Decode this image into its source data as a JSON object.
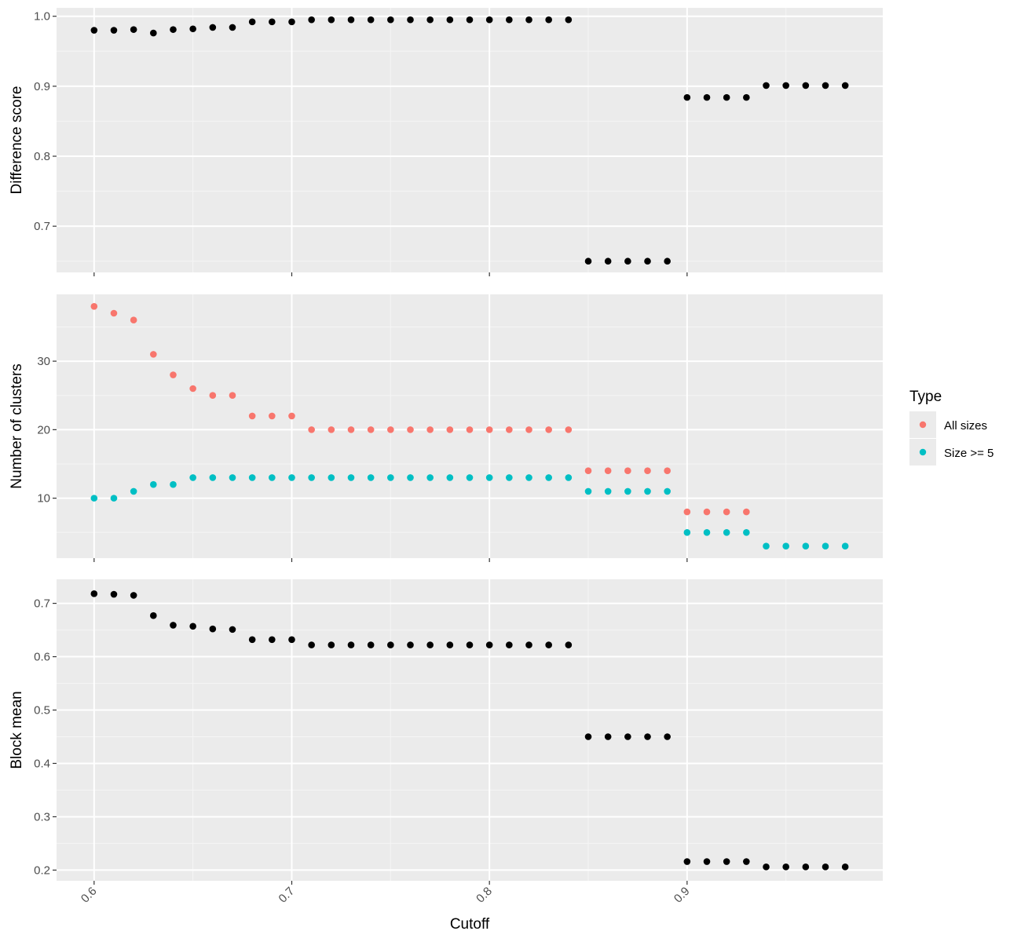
{
  "chart_data": {
    "type": "scatter",
    "x_axis": {
      "title": "Cutoff",
      "range": [
        0.581,
        0.999
      ],
      "ticks": [
        0.6,
        0.7,
        0.8,
        0.9
      ],
      "tick_labels": [
        "0.6",
        "0.7",
        "0.8",
        "0.9"
      ]
    },
    "x": [
      0.6,
      0.61,
      0.62,
      0.63,
      0.64,
      0.65,
      0.66,
      0.67,
      0.68,
      0.69,
      0.7,
      0.71,
      0.72,
      0.73,
      0.74,
      0.75,
      0.76,
      0.77,
      0.78,
      0.79,
      0.8,
      0.81,
      0.82,
      0.83,
      0.84,
      0.85,
      0.86,
      0.87,
      0.88,
      0.89,
      0.9,
      0.91,
      0.92,
      0.93,
      0.94,
      0.95,
      0.96,
      0.97,
      0.98
    ],
    "grid": true,
    "legend": {
      "title": "Type",
      "position": "right",
      "entries": [
        {
          "label": "All sizes",
          "color": "#F8766D"
        },
        {
          "label": "Size >= 5",
          "color": "#00BFC4"
        }
      ]
    },
    "panels": [
      {
        "ylabel": "Difference score",
        "ylim": [
          0.634,
          1.012
        ],
        "yticks": [
          0.7,
          0.8,
          0.9,
          1.0
        ],
        "ytick_labels": [
          "0.7",
          "0.8",
          "0.9",
          "1.0"
        ],
        "series": [
          {
            "color": "#000000",
            "values": [
              0.98,
              0.98,
              0.981,
              0.976,
              0.981,
              0.982,
              0.984,
              0.984,
              0.992,
              0.992,
              0.992,
              0.995,
              0.995,
              0.995,
              0.995,
              0.995,
              0.995,
              0.995,
              0.995,
              0.995,
              0.995,
              0.995,
              0.995,
              0.995,
              0.995,
              0.65,
              0.65,
              0.65,
              0.65,
              0.65,
              0.884,
              0.884,
              0.884,
              0.884,
              0.901,
              0.901,
              0.901,
              0.901,
              0.901
            ]
          }
        ]
      },
      {
        "ylabel": "Number of clusters",
        "ylim": [
          1.25,
          39.75
        ],
        "yticks": [
          10,
          20,
          30
        ],
        "ytick_labels": [
          "10",
          "20",
          "30"
        ],
        "series": [
          {
            "name": "All sizes",
            "color": "#F8766D",
            "values": [
              38,
              37,
              36,
              31,
              28,
              26,
              25,
              25,
              22,
              22,
              22,
              20,
              20,
              20,
              20,
              20,
              20,
              20,
              20,
              20,
              20,
              20,
              20,
              20,
              20,
              14,
              14,
              14,
              14,
              14,
              8,
              8,
              8,
              8,
              null,
              null,
              null,
              null,
              null
            ]
          },
          {
            "name": "Size >= 5",
            "color": "#00BFC4",
            "values": [
              10,
              10,
              11,
              12,
              12,
              13,
              13,
              13,
              13,
              13,
              13,
              13,
              13,
              13,
              13,
              13,
              13,
              13,
              13,
              13,
              13,
              13,
              13,
              13,
              13,
              11,
              11,
              11,
              11,
              11,
              5,
              5,
              5,
              5,
              3,
              3,
              3,
              3,
              3
            ]
          }
        ]
      },
      {
        "ylabel": "Block mean",
        "ylim": [
          0.18,
          0.745
        ],
        "yticks": [
          0.2,
          0.3,
          0.4,
          0.5,
          0.6,
          0.7
        ],
        "ytick_labels": [
          "0.2",
          "0.3",
          "0.4",
          "0.5",
          "0.6",
          "0.7"
        ],
        "series": [
          {
            "color": "#000000",
            "values": [
              0.718,
              0.717,
              0.715,
              0.677,
              0.659,
              0.657,
              0.652,
              0.651,
              0.632,
              0.632,
              0.632,
              0.622,
              0.622,
              0.622,
              0.622,
              0.622,
              0.622,
              0.622,
              0.622,
              0.622,
              0.622,
              0.622,
              0.622,
              0.622,
              0.622,
              0.45,
              0.45,
              0.45,
              0.45,
              0.45,
              0.216,
              0.216,
              0.216,
              0.216,
              0.206,
              0.206,
              0.206,
              0.206,
              0.206
            ]
          }
        ]
      }
    ]
  }
}
